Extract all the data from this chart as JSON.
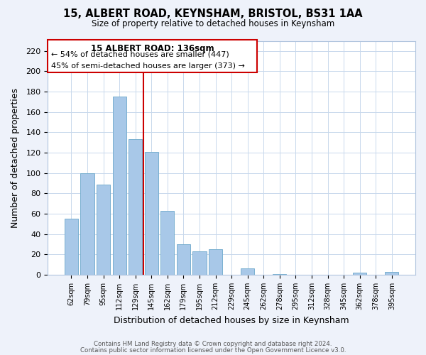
{
  "title_line1": "15, ALBERT ROAD, KEYNSHAM, BRISTOL, BS31 1AA",
  "title_line2": "Size of property relative to detached houses in Keynsham",
  "xlabel": "Distribution of detached houses by size in Keynsham",
  "ylabel": "Number of detached properties",
  "bar_labels": [
    "62sqm",
    "79sqm",
    "95sqm",
    "112sqm",
    "129sqm",
    "145sqm",
    "162sqm",
    "179sqm",
    "195sqm",
    "212sqm",
    "229sqm",
    "245sqm",
    "262sqm",
    "278sqm",
    "295sqm",
    "312sqm",
    "328sqm",
    "345sqm",
    "362sqm",
    "378sqm",
    "395sqm"
  ],
  "bar_values": [
    55,
    100,
    89,
    175,
    133,
    121,
    63,
    30,
    23,
    25,
    0,
    6,
    0,
    1,
    0,
    0,
    0,
    0,
    2,
    0,
    3
  ],
  "bar_color": "#a8c8e8",
  "bar_edge_color": "#7ab0d0",
  "vline_x": 4.5,
  "vline_color": "#cc0000",
  "annotation_title": "15 ALBERT ROAD: 136sqm",
  "annotation_line1": "← 54% of detached houses are smaller (447)",
  "annotation_line2": "45% of semi-detached houses are larger (373) →",
  "annotation_box_color": "#ffffff",
  "annotation_box_edge": "#cc0000",
  "ylim": [
    0,
    230
  ],
  "yticks": [
    0,
    20,
    40,
    60,
    80,
    100,
    120,
    140,
    160,
    180,
    200,
    220
  ],
  "footer_line1": "Contains HM Land Registry data © Crown copyright and database right 2024.",
  "footer_line2": "Contains public sector information licensed under the Open Government Licence v3.0.",
  "bg_color": "#eef2fa",
  "plot_bg_color": "#ffffff",
  "grid_color": "#c8d8ec"
}
